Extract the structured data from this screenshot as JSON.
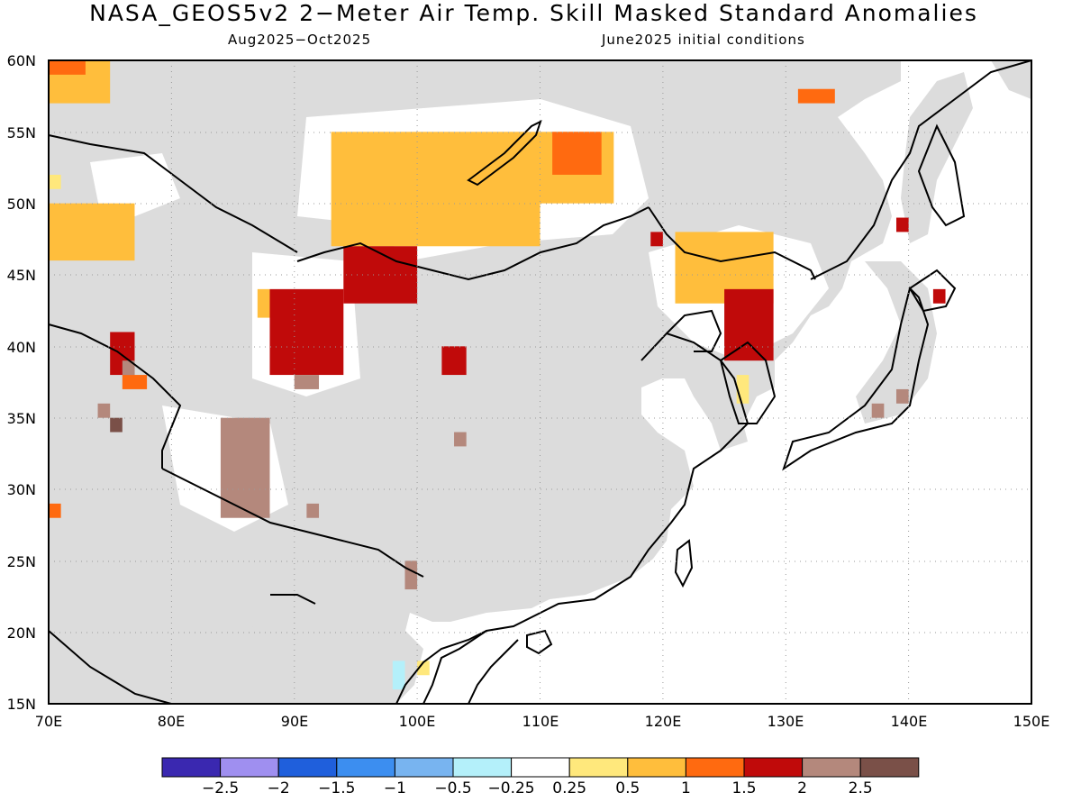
{
  "title": "NASA_GEOS5v2 2−Meter Air Temp. Skill Masked Standard Anomalies",
  "period": "Aug2025−Oct2025",
  "init": "June2025 initial conditions",
  "map": {
    "lon_range": [
      70,
      150
    ],
    "lat_range": [
      15,
      60
    ],
    "lon_ticks": [
      "70E",
      "80E",
      "90E",
      "100E",
      "110E",
      "120E",
      "130E",
      "140E",
      "150E"
    ],
    "lat_ticks": [
      "15N",
      "20N",
      "25N",
      "30N",
      "35N",
      "40N",
      "45N",
      "50N",
      "55N",
      "60N"
    ],
    "mask_color": "#dcdcdc",
    "background_color": "#ffffff",
    "gridlines": "dotted"
  },
  "colorbar": {
    "colors": [
      "#3a28b0",
      "#9f8ff0",
      "#1f5fdc",
      "#3c8ef0",
      "#78b4f0",
      "#b4f0fa",
      "#ffffff",
      "#ffe87c",
      "#ffbe3c",
      "#ff6a10",
      "#c00a0a",
      "#b4887c",
      "#7a5048"
    ],
    "labels": [
      "−2.5",
      "−2",
      "−1.5",
      "−1",
      "−0.5",
      "−0.25",
      "0.25",
      "0.5",
      "1",
      "1.5",
      "2",
      "2.5"
    ]
  },
  "chart_data": {
    "type": "heatmap",
    "title": "NASA_GEOS5v2 2−Meter Air Temp. Skill Masked Standard Anomalies",
    "xlim": [
      70,
      150
    ],
    "ylim": [
      15,
      60
    ],
    "cell_size_deg": 1.0,
    "anomaly_regions": [
      {
        "lon": [
          70,
          75
        ],
        "lat": [
          57,
          60
        ],
        "value": 0.5
      },
      {
        "lon": [
          70,
          73
        ],
        "lat": [
          59,
          60
        ],
        "value": 1.0
      },
      {
        "lon": [
          70,
          77
        ],
        "lat": [
          46,
          50
        ],
        "value": 0.5
      },
      {
        "lon": [
          70,
          71
        ],
        "lat": [
          51,
          52
        ],
        "value": 0.25
      },
      {
        "lon": [
          70,
          71
        ],
        "lat": [
          28,
          29
        ],
        "value": 1.0
      },
      {
        "lon": [
          76,
          78
        ],
        "lat": [
          37,
          38
        ],
        "value": 1.0
      },
      {
        "lon": [
          75,
          77
        ],
        "lat": [
          38,
          41
        ],
        "value": 1.5
      },
      {
        "lon": [
          76,
          77
        ],
        "lat": [
          38,
          39
        ],
        "value": 2.0
      },
      {
        "lon": [
          74,
          75
        ],
        "lat": [
          35,
          36
        ],
        "value": 2.0
      },
      {
        "lon": [
          75,
          76
        ],
        "lat": [
          34,
          35
        ],
        "value": 2.5
      },
      {
        "lon": [
          84,
          88
        ],
        "lat": [
          28,
          35
        ],
        "value": 2.0
      },
      {
        "lon": [
          87,
          88
        ],
        "lat": [
          42,
          44
        ],
        "value": 0.5
      },
      {
        "lon": [
          88,
          94
        ],
        "lat": [
          38,
          44
        ],
        "value": 1.5
      },
      {
        "lon": [
          90,
          92
        ],
        "lat": [
          37,
          38
        ],
        "value": 2.0
      },
      {
        "lon": [
          91,
          92
        ],
        "lat": [
          28,
          29
        ],
        "value": 2.0
      },
      {
        "lon": [
          93,
          110
        ],
        "lat": [
          47,
          55
        ],
        "value": 0.5
      },
      {
        "lon": [
          94,
          100
        ],
        "lat": [
          43,
          47
        ],
        "value": 1.5
      },
      {
        "lon": [
          102,
          104
        ],
        "lat": [
          38,
          40
        ],
        "value": 1.5
      },
      {
        "lon": [
          103,
          104
        ],
        "lat": [
          33,
          34
        ],
        "value": 2.0
      },
      {
        "lon": [
          99,
          100
        ],
        "lat": [
          23,
          25
        ],
        "value": 2.0
      },
      {
        "lon": [
          110,
          116
        ],
        "lat": [
          50,
          55
        ],
        "value": 0.5
      },
      {
        "lon": [
          111,
          115
        ],
        "lat": [
          52,
          55
        ],
        "value": 1.0
      },
      {
        "lon": [
          119,
          120
        ],
        "lat": [
          47,
          48
        ],
        "value": 1.5
      },
      {
        "lon": [
          121,
          129
        ],
        "lat": [
          43,
          48
        ],
        "value": 0.5
      },
      {
        "lon": [
          125,
          129
        ],
        "lat": [
          39,
          44
        ],
        "value": 1.5
      },
      {
        "lon": [
          126,
          127
        ],
        "lat": [
          36,
          38
        ],
        "value": 0.25
      },
      {
        "lon": [
          131,
          134
        ],
        "lat": [
          57,
          58
        ],
        "value": 1.0
      },
      {
        "lon": [
          139,
          140
        ],
        "lat": [
          48,
          49
        ],
        "value": 1.5
      },
      {
        "lon": [
          142,
          143
        ],
        "lat": [
          43,
          44
        ],
        "value": 1.5
      },
      {
        "lon": [
          137,
          138
        ],
        "lat": [
          35,
          36
        ],
        "value": 2.0
      },
      {
        "lon": [
          139,
          140
        ],
        "lat": [
          36,
          37
        ],
        "value": 2.0
      },
      {
        "lon": [
          98,
          99
        ],
        "lat": [
          16,
          18
        ],
        "value": -0.5
      },
      {
        "lon": [
          100,
          101
        ],
        "lat": [
          17,
          18
        ],
        "value": 0.25
      }
    ]
  }
}
